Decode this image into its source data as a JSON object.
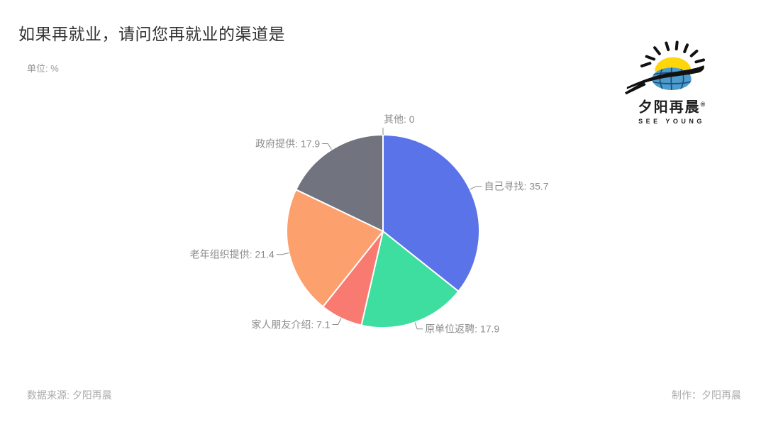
{
  "header": {
    "title": "如果再就业，请问您再就业的渠道是",
    "unit_label": "单位: %"
  },
  "logo": {
    "name_cn": "夕阳再晨",
    "registered_mark": "®",
    "name_en": "SEE YOUNG",
    "sun_color": "#FFD60C",
    "globe_color": "#4E9CCB",
    "globe_grid_color": "#1A4E7E",
    "stroke_color": "#111111"
  },
  "chart_data": {
    "type": "pie",
    "title": "如果再就业，请问您再就业的渠道是",
    "unit": "%",
    "direction": "clockwise",
    "start_angle": "top",
    "legend": false,
    "label_format": "{label}: {value}",
    "label_color": "#8c8c8c",
    "slice_border_color": "#ffffff",
    "slices": [
      {
        "label": "自己寻找",
        "value": 35.7,
        "color": "#5b73e8"
      },
      {
        "label": "原单位返聘",
        "value": 17.9,
        "color": "#3dde9f"
      },
      {
        "label": "家人朋友介绍",
        "value": 7.1,
        "color": "#f97a71"
      },
      {
        "label": "老年组织提供",
        "value": 21.4,
        "color": "#fca16e"
      },
      {
        "label": "政府提供",
        "value": 17.9,
        "color": "#71737f"
      },
      {
        "label": "其他",
        "value": 0,
        "color": "#9aa0a6"
      }
    ]
  },
  "footer": {
    "source": "数据来源: 夕阳再晨",
    "credit": "制作：夕阳再晨"
  }
}
